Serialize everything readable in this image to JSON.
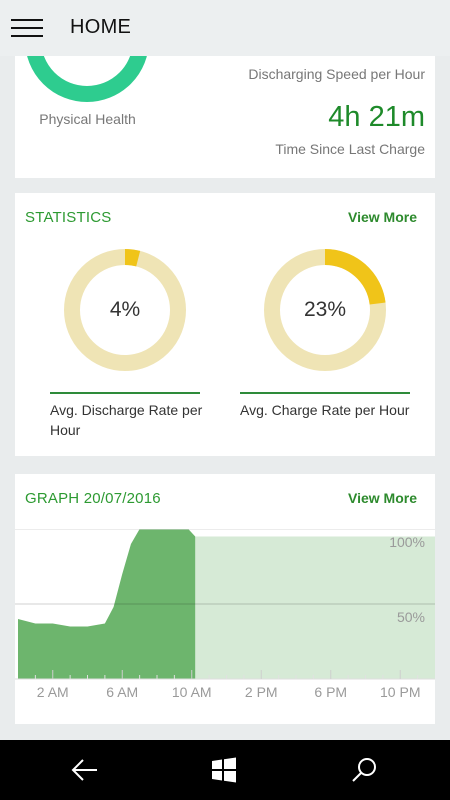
{
  "header": {
    "title": "HOME"
  },
  "health": {
    "label": "Physical Health",
    "ring_color": "#2ecc8f",
    "discharging_label": "Discharging Speed per Hour",
    "time_value": "4h 21m",
    "time_label": "Time Since Last Charge"
  },
  "statistics": {
    "title": "STATISTICS",
    "view_more": "View More",
    "discharge": {
      "value": "4%",
      "percent": 4,
      "label": "Avg. Discharge Rate per Hour"
    },
    "charge": {
      "value": "23%",
      "percent": 23,
      "label": "Avg. Charge Rate per Hour"
    },
    "ring_bg_color": "#efe4b5",
    "ring_fill_color": "#f0c419"
  },
  "graph": {
    "title": "GRAPH 20/07/2016",
    "view_more": "View More",
    "y_labels": [
      "100%",
      "50%"
    ],
    "x_labels": [
      "2 AM",
      "6 AM",
      "10 AM",
      "2 PM",
      "6 PM",
      "10 PM"
    ],
    "fill_color": "#6db56d",
    "projection_color": "#d6ead6"
  },
  "chart_data": {
    "type": "area",
    "x_unit": "hour",
    "x": [
      0,
      1,
      2,
      3,
      4,
      5,
      5.5,
      6,
      6.5,
      7,
      8,
      9,
      9.8,
      10.2
    ],
    "y": [
      40,
      37,
      37,
      35,
      35,
      37,
      48,
      70,
      90,
      100,
      100,
      100,
      100,
      95
    ],
    "projection": {
      "from": 10.2,
      "to": 24,
      "value": 95
    },
    "x_ticks": [
      "2 AM",
      "6 AM",
      "10 AM",
      "2 PM",
      "6 PM",
      "10 PM"
    ],
    "y_ticks": [
      "100%",
      "50%"
    ],
    "ylim": [
      0,
      100
    ],
    "grid": true
  },
  "nav": {
    "back": "back-icon",
    "home": "windows-icon",
    "search": "search-icon"
  }
}
